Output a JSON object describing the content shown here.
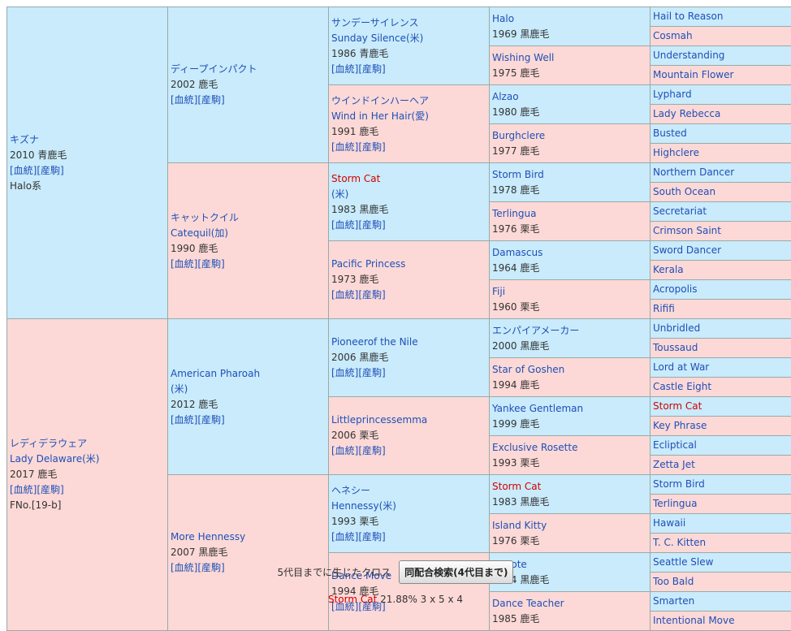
{
  "gen1": [
    {
      "lines": [
        "キズナ",
        "2010 青鹿毛",
        "[血統][産駒]",
        "Halo系"
      ],
      "colors": [
        "lnk",
        "blk",
        "links",
        "blk"
      ]
    },
    {
      "lines": [
        "レディデラウェア",
        "Lady Delaware(米)",
        "2017 鹿毛",
        "[血統][産駒]",
        "FNo.[19-b]"
      ],
      "colors": [
        "lnk",
        "lnk",
        "blk",
        "links",
        "blk"
      ]
    }
  ],
  "gen2": [
    {
      "lines": [
        "ディープインパクト",
        "2002 鹿毛",
        "[血統][産駒]"
      ],
      "colors": [
        "lnk",
        "blk",
        "links"
      ]
    },
    {
      "lines": [
        "キャットクイル",
        "Catequil(加)",
        "1990 鹿毛",
        "[血統][産駒]"
      ],
      "colors": [
        "lnk",
        "lnk",
        "blk",
        "links"
      ]
    },
    {
      "lines": [
        "American Pharoah",
        "(米)",
        "2012 鹿毛",
        "[血統][産駒]"
      ],
      "colors": [
        "lnk",
        "lnk",
        "blk",
        "links"
      ]
    },
    {
      "lines": [
        "More Hennessy",
        "2007 黒鹿毛",
        "[血統][産駒]"
      ],
      "colors": [
        "lnk",
        "blk",
        "links"
      ]
    }
  ],
  "gen3": [
    {
      "lines": [
        "サンデーサイレンス",
        "Sunday Silence(米)",
        "1986 青鹿毛",
        "[血統][産駒]"
      ],
      "colors": [
        "lnk",
        "lnk",
        "blk",
        "links"
      ]
    },
    {
      "lines": [
        "ウインドインハーヘア",
        "Wind in Her Hair(愛)",
        "1991 鹿毛",
        "[血統][産駒]"
      ],
      "colors": [
        "lnk",
        "lnk",
        "blk",
        "links"
      ]
    },
    {
      "lines": [
        "Storm Cat",
        "(米)",
        "1983 黒鹿毛",
        "[血統][産駒]"
      ],
      "colors": [
        "red",
        "lnk",
        "blk",
        "links"
      ]
    },
    {
      "lines": [
        "Pacific Princess",
        "1973 鹿毛",
        "[血統][産駒]"
      ],
      "colors": [
        "lnk",
        "blk",
        "links"
      ]
    },
    {
      "lines": [
        "Pioneerof the Nile",
        "2006 黒鹿毛",
        "[血統][産駒]"
      ],
      "colors": [
        "lnk",
        "blk",
        "links"
      ]
    },
    {
      "lines": [
        "Littleprincessemma",
        "2006 栗毛",
        "[血統][産駒]"
      ],
      "colors": [
        "lnk",
        "blk",
        "links"
      ]
    },
    {
      "lines": [
        "ヘネシー",
        "Hennessy(米)",
        "1993 栗毛",
        "[血統][産駒]"
      ],
      "colors": [
        "lnk",
        "lnk",
        "blk",
        "links"
      ]
    },
    {
      "lines": [
        "Dance Move",
        "1994 鹿毛",
        "[血統][産駒]"
      ],
      "colors": [
        "lnk",
        "blk",
        "links"
      ]
    }
  ],
  "gen4": [
    {
      "name": "Halo",
      "year": "1969 黒鹿毛",
      "red": false
    },
    {
      "name": "Wishing Well",
      "year": "1975 鹿毛",
      "red": false
    },
    {
      "name": "Alzao",
      "year": "1980 鹿毛",
      "red": false
    },
    {
      "name": "Burghclere",
      "year": "1977 鹿毛",
      "red": false
    },
    {
      "name": "Storm Bird",
      "year": "1978 鹿毛",
      "red": false
    },
    {
      "name": "Terlingua",
      "year": "1976 栗毛",
      "red": false
    },
    {
      "name": "Damascus",
      "year": "1964 鹿毛",
      "red": false
    },
    {
      "name": "Fiji",
      "year": "1960 栗毛",
      "red": false
    },
    {
      "name": "エンパイアメーカー",
      "year": "2000 黒鹿毛",
      "red": false
    },
    {
      "name": "Star of Goshen",
      "year": "1994 鹿毛",
      "red": false
    },
    {
      "name": "Yankee Gentleman",
      "year": "1999 鹿毛",
      "red": false
    },
    {
      "name": "Exclusive Rosette",
      "year": "1993 栗毛",
      "red": false
    },
    {
      "name": "Storm Cat",
      "year": "1983 黒鹿毛",
      "red": true
    },
    {
      "name": "Island Kitty",
      "year": "1976 栗毛",
      "red": false
    },
    {
      "name": "Capote",
      "year": "1984 黒鹿毛",
      "red": false
    },
    {
      "name": "Dance Teacher",
      "year": "1985 鹿毛",
      "red": false
    }
  ],
  "gen5": [
    {
      "name": "Hail to Reason",
      "red": false
    },
    {
      "name": "Cosmah",
      "red": false
    },
    {
      "name": "Understanding",
      "red": false
    },
    {
      "name": "Mountain Flower",
      "red": false
    },
    {
      "name": "Lyphard",
      "red": false
    },
    {
      "name": "Lady Rebecca",
      "red": false
    },
    {
      "name": "Busted",
      "red": false
    },
    {
      "name": "Highclere",
      "red": false
    },
    {
      "name": "Northern Dancer",
      "red": false
    },
    {
      "name": "South Ocean",
      "red": false
    },
    {
      "name": "Secretariat",
      "red": false
    },
    {
      "name": "Crimson Saint",
      "red": false
    },
    {
      "name": "Sword Dancer",
      "red": false
    },
    {
      "name": "Kerala",
      "red": false
    },
    {
      "name": "Acropolis",
      "red": false
    },
    {
      "name": "Rififi",
      "red": false
    },
    {
      "name": "Unbridled",
      "red": false
    },
    {
      "name": "Toussaud",
      "red": false
    },
    {
      "name": "Lord at War",
      "red": false
    },
    {
      "name": "Castle Eight",
      "red": false
    },
    {
      "name": "Storm Cat",
      "red": true
    },
    {
      "name": "Key Phrase",
      "red": false
    },
    {
      "name": "Ecliptical",
      "red": false
    },
    {
      "name": "Zetta Jet",
      "red": false
    },
    {
      "name": "Storm Bird",
      "red": false
    },
    {
      "name": "Terlingua",
      "red": false
    },
    {
      "name": "Hawaii",
      "red": false
    },
    {
      "name": "T. C. Kitten",
      "red": false
    },
    {
      "name": "Seattle Slew",
      "red": false
    },
    {
      "name": "Too Bald",
      "red": false
    },
    {
      "name": "Smarten",
      "red": false
    },
    {
      "name": "Intentional Move",
      "red": false
    }
  ],
  "footer": {
    "cross_label": "5代目までに生じたクロス",
    "search_button": "同配合検索(4代目まで)",
    "cross_horse": "Storm Cat",
    "cross_detail": "21.88%  3 x 5 x 4"
  }
}
